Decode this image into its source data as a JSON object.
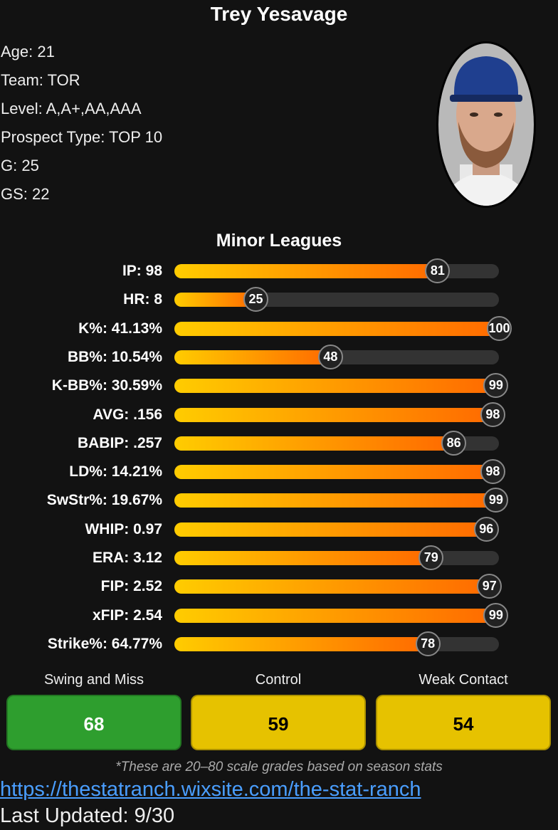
{
  "player": {
    "name": "Trey Yesavage",
    "info": [
      "Age: 21",
      "Team: TOR",
      "Level: A,A+,AA,AAA",
      "Prospect Type: TOP 10",
      "G: 25",
      "GS: 22"
    ]
  },
  "section_title": "Minor Leagues",
  "stats": [
    {
      "label": "IP: 98",
      "pct": 81
    },
    {
      "label": "HR: 8",
      "pct": 25
    },
    {
      "label": "K%: 41.13%",
      "pct": 100
    },
    {
      "label": "BB%: 10.54%",
      "pct": 48
    },
    {
      "label": "K-BB%: 30.59%",
      "pct": 99
    },
    {
      "label": "AVG: .156",
      "pct": 98
    },
    {
      "label": "BABIP: .257",
      "pct": 86
    },
    {
      "label": "LD%: 14.21%",
      "pct": 98
    },
    {
      "label": "SwStr%: 19.67%",
      "pct": 99
    },
    {
      "label": "WHIP: 0.97",
      "pct": 96
    },
    {
      "label": "ERA: 3.12",
      "pct": 79
    },
    {
      "label": "FIP: 2.52",
      "pct": 97
    },
    {
      "label": "xFIP: 2.54",
      "pct": 99
    },
    {
      "label": "Strike%: 64.77%",
      "pct": 78
    }
  ],
  "grades": [
    {
      "label": "Swing and Miss",
      "value": "68",
      "color": "#2e9e2e",
      "text": "#ffffff"
    },
    {
      "label": "Control",
      "value": "59",
      "color": "#e6c200",
      "text": "#000000"
    },
    {
      "label": "Weak Contact",
      "value": "54",
      "color": "#e6c200",
      "text": "#000000"
    }
  ],
  "note": "*These are 20–80 scale grades based on season stats",
  "link": "https://thestatranch.wixsite.com/the-stat-ranch",
  "updated": "Last Updated: 9/30"
}
